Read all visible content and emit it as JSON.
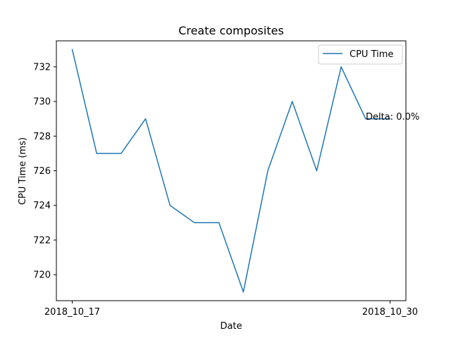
{
  "chart_data": {
    "type": "line",
    "title": "Create composites",
    "xlabel": "Date",
    "ylabel": "CPU Time (ms)",
    "categories": [
      "2018_10_17",
      "",
      "",
      "",
      "",
      "",
      "",
      "",
      "",
      "",
      "",
      "",
      "",
      "2018_10_30"
    ],
    "x_tick_labels": [
      "2018_10_17",
      "2018_10_30"
    ],
    "y_ticks": [
      720,
      722,
      724,
      726,
      728,
      730,
      732
    ],
    "ylim": [
      718.5,
      733.5
    ],
    "grid": false,
    "legend_position": "top-right",
    "series": [
      {
        "name": "CPU Time",
        "color": "#1f77b4",
        "values": [
          733,
          727,
          727,
          729,
          724,
          723,
          723,
          719,
          726,
          730,
          726,
          732,
          729,
          729
        ]
      }
    ],
    "annotation": "Delta: 0.0%"
  }
}
